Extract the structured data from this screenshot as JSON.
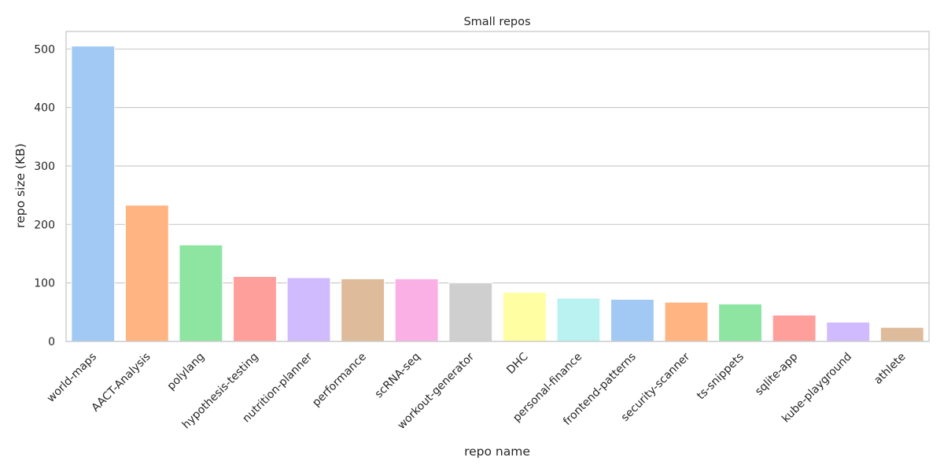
{
  "chart_data": {
    "type": "bar",
    "title": "Small repos",
    "xlabel": "repo name",
    "ylabel": "repo size (KB)",
    "ylim": [
      0,
      530
    ],
    "yticks": [
      0,
      100,
      200,
      300,
      400,
      500
    ],
    "grid": true,
    "categories": [
      "world-maps",
      "AACT-Analysis",
      "polylang",
      "hypothesis-testing",
      "nutrition-planner",
      "performance",
      "scRNA-seq",
      "workout-generator",
      "DHC",
      "personal-finance",
      "frontend-patterns",
      "security-scanner",
      "ts-snippets",
      "sqlite-app",
      "kube-playground",
      "athlete"
    ],
    "values": [
      505,
      233,
      165,
      111,
      109,
      107,
      107,
      100,
      84,
      74,
      72,
      67,
      64,
      45,
      33,
      24
    ],
    "colors": [
      "#a1c9f4",
      "#ffb482",
      "#8de5a1",
      "#ff9f9b",
      "#d0bbff",
      "#debb9b",
      "#fab0e4",
      "#cfcfcf",
      "#fffea3",
      "#b9f2f0",
      "#a1c9f4",
      "#ffb482",
      "#8de5a1",
      "#ff9f9b",
      "#d0bbff",
      "#debb9b"
    ]
  }
}
